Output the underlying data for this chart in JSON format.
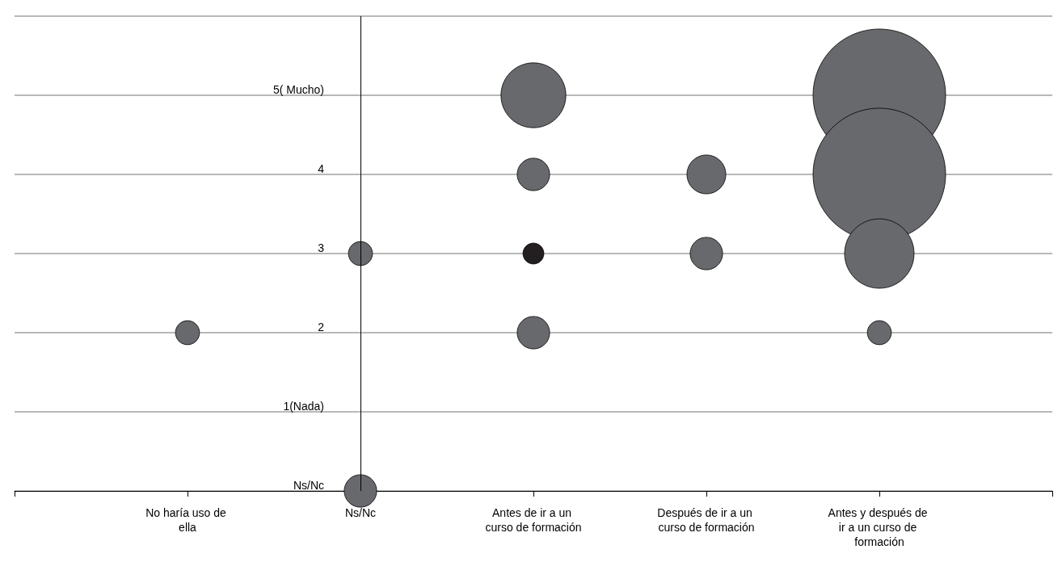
{
  "chart_data": {
    "type": "bubble",
    "relative": false,
    "categories": [
      null,
      "No haría uso de ella",
      "Ns/Nc",
      "Antes de ir a un curso de formación",
      "Después de ir a un curso de formación",
      "Antes y después de ir a un curso de formación",
      null
    ],
    "ylim": [
      0,
      6
    ],
    "yticks": [
      {
        "value": 0,
        "label": "Ns/Nc"
      },
      {
        "value": 1,
        "label": "1(Nada)"
      },
      {
        "value": 2,
        "label": "2"
      },
      {
        "value": 3,
        "label": "3"
      },
      {
        "value": 4,
        "label": "4"
      },
      {
        "value": 5,
        "label": "5( Mucho)"
      },
      {
        "value": 6,
        "label": null
      }
    ],
    "grid": "y",
    "ref_lines": [
      {
        "axis": "x",
        "value": "Ns/Nc",
        "color": "#000000",
        "line_style": "solid"
      }
    ],
    "series": [
      {
        "x": [
          "No haría uso de ella",
          "Ns/Nc",
          "Ns/Nc",
          "Antes de ir a un curso de formación",
          "Antes de ir a un curso de formación",
          "Antes de ir a un curso de formación",
          "Antes de ir a un curso de formación",
          "Después de ir a un curso de formación",
          "Después de ir a un curso de formación",
          "Antes y después de ir a un curso de formación",
          "Antes y después de ir a un curso de formación",
          "Antes y después de ir a un curso de formación",
          "Antes y después de ir a un curso de formación"
        ],
        "values": [
          2,
          3,
          0,
          5,
          4,
          3,
          2,
          4,
          3,
          5,
          4,
          3,
          2
        ],
        "sizes": [
          0.033,
          0.033,
          0.06,
          0.24,
          0.06,
          0.025,
          0.06,
          0.086,
          0.06,
          1,
          1,
          0.275,
          0.033
        ],
        "colors": [
          "#68696c",
          "#68696c",
          "#68696c",
          "#68696c",
          "#68696c",
          "#231f20",
          "#68696c",
          "#68696c",
          "#68696c",
          "#68696c",
          "#68696c",
          "#68696c",
          "#68696c"
        ]
      }
    ]
  }
}
